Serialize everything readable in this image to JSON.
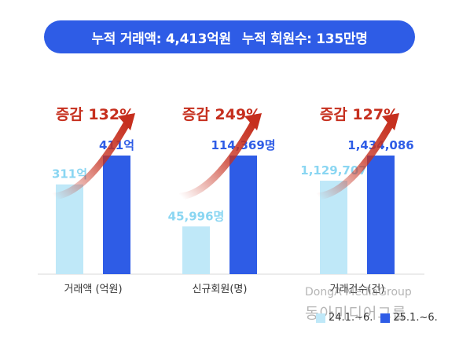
{
  "banner": {
    "total_amount": "누적 거래액: 4,413억원",
    "total_members": "누적 회원수: 135만명"
  },
  "colors": {
    "prev": "#bfe8f8",
    "curr": "#2e5ce6",
    "prev_label": "#8ad6f2",
    "curr_label": "#2e5ce6",
    "arrow": "#c62f1e",
    "banner": "#2e5ce6"
  },
  "chart_data": {
    "type": "bar",
    "categories": [
      "거래액 (억원)",
      "신규회원(명)",
      "거래건수(건)"
    ],
    "series": [
      {
        "name": "24.1.~6.",
        "values": [
          311,
          45996,
          1129707
        ],
        "labels": [
          "311억",
          "45,996명",
          "1,129,707"
        ]
      },
      {
        "name": "25.1.~6.",
        "values": [
          411,
          114369,
          1434086
        ],
        "labels": [
          "411억",
          "114,369명",
          "1,434,086"
        ]
      }
    ],
    "growth_labels": [
      "증감 132%",
      "증감 249%",
      "증감 127%"
    ],
    "grid": false,
    "legend_position": "bottom-right"
  },
  "watermark": {
    "en": "DongA MediaGroup",
    "kr": "동아미디어그룹"
  }
}
